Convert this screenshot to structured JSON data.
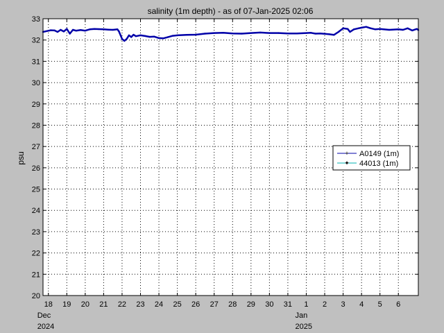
{
  "chart_data": {
    "type": "line",
    "title": "salinity (1m depth) - as of 07-Jan-2025 02:06",
    "xlabel": "",
    "ylabel": "psu",
    "ylim": [
      20,
      33
    ],
    "y_ticks": [
      20,
      21,
      22,
      23,
      24,
      25,
      26,
      27,
      28,
      29,
      30,
      31,
      32,
      33
    ],
    "xlim": [
      "2024-12-17 17:00",
      "2025-01-07 02:00"
    ],
    "x_ticks": [
      {
        "date": "2024-12-18",
        "label": "18"
      },
      {
        "date": "2024-12-19",
        "label": "19"
      },
      {
        "date": "2024-12-20",
        "label": "20"
      },
      {
        "date": "2024-12-21",
        "label": "21"
      },
      {
        "date": "2024-12-22",
        "label": "22"
      },
      {
        "date": "2024-12-23",
        "label": "23"
      },
      {
        "date": "2024-12-24",
        "label": "24"
      },
      {
        "date": "2024-12-25",
        "label": "25"
      },
      {
        "date": "2024-12-26",
        "label": "26"
      },
      {
        "date": "2024-12-27",
        "label": "27"
      },
      {
        "date": "2024-12-28",
        "label": "28"
      },
      {
        "date": "2024-12-29",
        "label": "29"
      },
      {
        "date": "2024-12-30",
        "label": "30"
      },
      {
        "date": "2024-12-31",
        "label": "31"
      },
      {
        "date": "2025-01-01",
        "label": "1"
      },
      {
        "date": "2025-01-02",
        "label": "2"
      },
      {
        "date": "2025-01-03",
        "label": "3"
      },
      {
        "date": "2025-01-04",
        "label": "4"
      },
      {
        "date": "2025-01-05",
        "label": "5"
      },
      {
        "date": "2025-01-06",
        "label": "6"
      }
    ],
    "period_labels": [
      {
        "date": "2024-12-18",
        "month": "Dec",
        "year": "2024"
      },
      {
        "date": "2025-01-01",
        "month": "Jan",
        "year": "2025"
      }
    ],
    "grid": true,
    "legend_position": "right",
    "series": [
      {
        "name": "A0149 (1m)",
        "color": "#0000a8",
        "points": [
          [
            "2024-12-17 17:00",
            32.38
          ],
          [
            "2024-12-17 22:00",
            32.42
          ],
          [
            "2024-12-18 03:00",
            32.46
          ],
          [
            "2024-12-18 08:00",
            32.45
          ],
          [
            "2024-12-18 12:00",
            32.38
          ],
          [
            "2024-12-18 16:00",
            32.48
          ],
          [
            "2024-12-18 20:00",
            32.4
          ],
          [
            "2024-12-19 00:00",
            32.52
          ],
          [
            "2024-12-19 04:00",
            32.3
          ],
          [
            "2024-12-19 08:00",
            32.48
          ],
          [
            "2024-12-19 12:00",
            32.44
          ],
          [
            "2024-12-19 18:00",
            32.47
          ],
          [
            "2024-12-20 00:00",
            32.44
          ],
          [
            "2024-12-20 06:00",
            32.5
          ],
          [
            "2024-12-20 12:00",
            32.52
          ],
          [
            "2024-12-20 18:00",
            32.51
          ],
          [
            "2024-12-21 00:00",
            32.5
          ],
          [
            "2024-12-21 06:00",
            32.49
          ],
          [
            "2024-12-21 12:00",
            32.48
          ],
          [
            "2024-12-21 18:00",
            32.5
          ],
          [
            "2024-12-21 20:00",
            32.4
          ],
          [
            "2024-12-22 00:00",
            32.05
          ],
          [
            "2024-12-22 03:00",
            31.96
          ],
          [
            "2024-12-22 06:00",
            32.05
          ],
          [
            "2024-12-22 09:00",
            32.22
          ],
          [
            "2024-12-22 12:00",
            32.14
          ],
          [
            "2024-12-22 15:00",
            32.25
          ],
          [
            "2024-12-22 18:00",
            32.18
          ],
          [
            "2024-12-23 00:00",
            32.22
          ],
          [
            "2024-12-23 06:00",
            32.19
          ],
          [
            "2024-12-23 12:00",
            32.15
          ],
          [
            "2024-12-23 18:00",
            32.16
          ],
          [
            "2024-12-24 00:00",
            32.09
          ],
          [
            "2024-12-24 06:00",
            32.08
          ],
          [
            "2024-12-24 12:00",
            32.14
          ],
          [
            "2024-12-24 18:00",
            32.2
          ],
          [
            "2024-12-25 00:00",
            32.22
          ],
          [
            "2024-12-25 12:00",
            32.24
          ],
          [
            "2024-12-26 00:00",
            32.25
          ],
          [
            "2024-12-26 12:00",
            32.3
          ],
          [
            "2024-12-27 00:00",
            32.33
          ],
          [
            "2024-12-27 12:00",
            32.34
          ],
          [
            "2024-12-28 00:00",
            32.31
          ],
          [
            "2024-12-28 12:00",
            32.3
          ],
          [
            "2024-12-29 00:00",
            32.33
          ],
          [
            "2024-12-29 12:00",
            32.35
          ],
          [
            "2024-12-30 00:00",
            32.33
          ],
          [
            "2024-12-30 12:00",
            32.33
          ],
          [
            "2024-12-31 00:00",
            32.31
          ],
          [
            "2024-12-31 12:00",
            32.31
          ],
          [
            "2025-01-01 00:00",
            32.33
          ],
          [
            "2025-01-01 06:00",
            32.34
          ],
          [
            "2025-01-01 12:00",
            32.3
          ],
          [
            "2025-01-01 18:00",
            32.31
          ],
          [
            "2025-01-02 00:00",
            32.29
          ],
          [
            "2025-01-02 06:00",
            32.27
          ],
          [
            "2025-01-02 12:00",
            32.24
          ],
          [
            "2025-01-02 18:00",
            32.38
          ],
          [
            "2025-01-03 00:00",
            32.55
          ],
          [
            "2025-01-03 06:00",
            32.52
          ],
          [
            "2025-01-03 09:00",
            32.38
          ],
          [
            "2025-01-03 14:00",
            32.5
          ],
          [
            "2025-01-03 20:00",
            32.55
          ],
          [
            "2025-01-04 00:00",
            32.58
          ],
          [
            "2025-01-04 06:00",
            32.62
          ],
          [
            "2025-01-04 12:00",
            32.55
          ],
          [
            "2025-01-04 18:00",
            32.5
          ],
          [
            "2025-01-05 00:00",
            32.52
          ],
          [
            "2025-01-05 12:00",
            32.48
          ],
          [
            "2025-01-06 00:00",
            32.5
          ],
          [
            "2025-01-06 06:00",
            32.48
          ],
          [
            "2025-01-06 12:00",
            32.55
          ],
          [
            "2025-01-06 18:00",
            32.45
          ],
          [
            "2025-01-07 00:00",
            32.52
          ],
          [
            "2025-01-07 02:00",
            32.47
          ]
        ]
      },
      {
        "name": "44013 (1m)",
        "color": "#00b0b0",
        "points": []
      }
    ]
  }
}
